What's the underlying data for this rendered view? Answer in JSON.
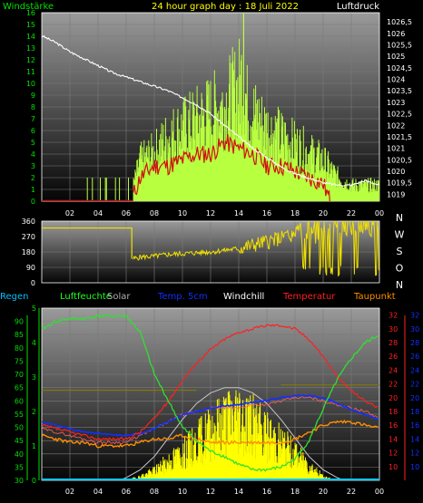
{
  "colors": {
    "background": "#000000",
    "plot_top": "#9a9a9a",
    "plot_bottom": "#050505",
    "grid": "#7a7a7a",
    "wind": "#7cf000",
    "wind_gust": "#b8ff40",
    "pressure": "#ffffff",
    "wind_dir": "#f0e000",
    "wind_dir_fill": "#8c8000",
    "rain": "#00d000",
    "humidity": "#30e030",
    "solar": "#ffff00",
    "solar_outline": "#c8c8c8",
    "soil_temp": "#1030ff",
    "windchill": "#ffffff",
    "temperature": "#ff2020",
    "dewpoint": "#ff8c00",
    "axis_green": "#00e000",
    "axis_red": "#ff2020",
    "axis_blue": "#1030ff",
    "header_white": "#ffffff",
    "header_yellow": "#ffff00"
  },
  "header": {
    "left": "Windstärke",
    "center": "24 hour graph day : 18 Juli 2022",
    "right": "Luftdruck"
  },
  "legend": [
    {
      "key": "rain",
      "label": "Regen",
      "color": "#00c0ff"
    },
    {
      "key": "humidity",
      "label": "Luftfeuchte",
      "color": "#20ff20"
    },
    {
      "key": "solar",
      "label": "Solar",
      "color": "#b0b0b0"
    },
    {
      "key": "soil_temp",
      "label": "Temp. 5cm",
      "color": "#1030ff"
    },
    {
      "key": "windchill",
      "label": "Windchill",
      "color": "#ffffff"
    },
    {
      "key": "temperature",
      "label": "Temperatur",
      "color": "#ff2020"
    },
    {
      "key": "dewpoint",
      "label": "Taupunkt",
      "color": "#ff8c00"
    }
  ],
  "chart_data": [
    {
      "type": "line",
      "id": "wind-pressure",
      "xlabel": "",
      "x_ticks": [
        "02",
        "04",
        "06",
        "08",
        "10",
        "12",
        "14",
        "16",
        "18",
        "20",
        "22",
        "00"
      ],
      "xlim": [
        0,
        24
      ],
      "y_left": {
        "label": "Windstärke",
        "min": 0,
        "max": 16,
        "ticks": [
          "0",
          "1",
          "2",
          "3",
          "4",
          "5",
          "6",
          "7",
          "8",
          "9",
          "10",
          "11",
          "12",
          "13",
          "14",
          "15",
          "16"
        ]
      },
      "y_right": {
        "label": "Luftdruck",
        "min": 1018.7,
        "max": 1026.9,
        "ticks": [
          "1019",
          "1019,5",
          "1020",
          "1020,5",
          "1021",
          "1021,5",
          "1022",
          "1022,5",
          "1023",
          "1023,5",
          "1024",
          "1024,5",
          "1025",
          "1025,5",
          "1026",
          "1026,5"
        ]
      },
      "series": [
        {
          "name": "Luftdruck",
          "axis": "right",
          "x": [
            0,
            1,
            2,
            3,
            4,
            5,
            6,
            7,
            8,
            9,
            10,
            11,
            12,
            13,
            14,
            15,
            16,
            17,
            18,
            19,
            20,
            21,
            22,
            23,
            24
          ],
          "y": [
            1025.9,
            1025.6,
            1025.2,
            1024.9,
            1024.6,
            1024.3,
            1024.1,
            1023.9,
            1023.7,
            1023.5,
            1023.2,
            1022.9,
            1022.5,
            1022.0,
            1021.5,
            1021.0,
            1020.6,
            1020.2,
            1019.9,
            1019.7,
            1019.5,
            1019.4,
            1019.4,
            1019.6,
            1019.4
          ]
        },
        {
          "name": "Windstärke",
          "axis": "left",
          "x": [
            6.5,
            7,
            8,
            9,
            10,
            11,
            12,
            13,
            14,
            15,
            16,
            17,
            18,
            19,
            20,
            20.5
          ],
          "y": [
            0.5,
            2,
            3,
            3,
            3.5,
            4,
            4,
            5,
            4.5,
            4,
            3,
            3,
            2.5,
            2,
            1.5,
            0
          ]
        },
        {
          "name": "Windböen",
          "axis": "left",
          "x": [
            0,
            0.5,
            3,
            6.5,
            7,
            8,
            9,
            10,
            11,
            12,
            13,
            14,
            14.3,
            14.6,
            15,
            16,
            17,
            18,
            19,
            20,
            21,
            22,
            23,
            24
          ],
          "y": [
            2,
            2,
            2,
            2,
            5,
            6,
            8,
            9,
            10,
            11,
            12,
            14,
            16,
            12,
            11,
            9,
            8,
            7,
            6,
            5,
            3,
            2,
            2,
            2
          ]
        }
      ]
    },
    {
      "type": "line",
      "id": "wind-direction",
      "xlim": [
        0,
        24
      ],
      "y_left": {
        "min": 0,
        "max": 360,
        "ticks": [
          "0",
          "90",
          "180",
          "270",
          "360"
        ]
      },
      "y_right_labels": [
        "N",
        "W",
        "S",
        "O",
        "N"
      ],
      "series": [
        {
          "name": "Windrichtung",
          "x": [
            0,
            6.4,
            6.5,
            7,
            8,
            9,
            10,
            11,
            12,
            13,
            14,
            15,
            16,
            17,
            18,
            19,
            20,
            21,
            22,
            23,
            24
          ],
          "y": [
            320,
            320,
            140,
            150,
            155,
            165,
            170,
            175,
            180,
            190,
            200,
            220,
            240,
            260,
            280,
            300,
            320,
            340,
            350,
            350,
            350
          ]
        }
      ]
    },
    {
      "type": "line",
      "id": "temperature-humidity",
      "xlim": [
        0,
        24
      ],
      "y_left_outer": {
        "label": "Regen",
        "min": 0,
        "max": 5,
        "ticks": [
          "0",
          "1",
          "2",
          "3",
          "4",
          "5"
        ]
      },
      "y_left": {
        "label": "Luftfeuchte",
        "min": 30,
        "max": 95,
        "ticks": [
          "30",
          "35",
          "40",
          "45",
          "50",
          "55",
          "60",
          "65",
          "70",
          "75",
          "80",
          "85",
          "90"
        ]
      },
      "y_right": {
        "label": "Temperatur",
        "min": 8,
        "max": 33,
        "ticks": [
          "10",
          "12",
          "14",
          "16",
          "18",
          "20",
          "22",
          "24",
          "26",
          "28",
          "30",
          "32"
        ]
      },
      "series": [
        {
          "name": "Luftfeuchte",
          "axis": "left",
          "x": [
            0,
            1,
            2,
            3,
            4,
            5,
            6,
            7,
            8,
            9,
            10,
            11,
            12,
            13,
            14,
            15,
            16,
            17,
            18,
            19,
            20,
            21,
            22,
            23,
            24
          ],
          "y": [
            87,
            90,
            91,
            91,
            92,
            92,
            92,
            86,
            70,
            60,
            50,
            45,
            41,
            39,
            36,
            34,
            34,
            35,
            38,
            45,
            57,
            68,
            76,
            82,
            85
          ]
        },
        {
          "name": "Temperatur",
          "axis": "right",
          "x": [
            0,
            1,
            2,
            3,
            4,
            5,
            6,
            7,
            8,
            9,
            10,
            11,
            12,
            13,
            14,
            15,
            16,
            17,
            18,
            19,
            20,
            21,
            22,
            23,
            24
          ],
          "y": [
            16,
            15.5,
            15,
            14.5,
            14,
            14,
            14,
            15,
            17,
            19.5,
            22.5,
            25,
            27,
            28.5,
            29.5,
            30,
            30.5,
            30.5,
            30,
            28.5,
            26,
            23,
            21,
            19.5,
            18.5
          ]
        },
        {
          "name": "Taupunkt",
          "axis": "right",
          "x": [
            0,
            1,
            2,
            3,
            4,
            5,
            6,
            7,
            8,
            9,
            10,
            11,
            12,
            13,
            14,
            15,
            16,
            17,
            18,
            19,
            20,
            21,
            22,
            23,
            24
          ],
          "y": [
            14.5,
            14,
            13.5,
            13.5,
            13,
            13,
            13,
            13.5,
            14,
            14,
            14.5,
            14,
            13.5,
            13.5,
            13.5,
            13.5,
            13.5,
            13.5,
            14,
            15,
            16,
            16.5,
            16.5,
            16,
            15.5
          ]
        },
        {
          "name": "Windchill",
          "axis": "right",
          "x": [
            0,
            1,
            2,
            3,
            4,
            5,
            6,
            7,
            8,
            9,
            10,
            11,
            12,
            13,
            14,
            15,
            16,
            17,
            18,
            19,
            20,
            21,
            22,
            23,
            24
          ],
          "y": [
            15.5,
            15,
            14.5,
            14,
            13.5,
            13.5,
            13.5,
            14.5,
            15.5,
            16.5,
            17.5,
            18,
            18.5,
            18.5,
            18.5,
            19,
            19,
            19.5,
            20,
            20,
            19.5,
            19,
            18.5,
            18,
            17
          ]
        },
        {
          "name": "Temp. 5cm",
          "axis": "right",
          "x": [
            0,
            1,
            2,
            3,
            4,
            5,
            6,
            7,
            8,
            9,
            10,
            11,
            12,
            13,
            14,
            15,
            16,
            17,
            18,
            19,
            20,
            21,
            22,
            23,
            24
          ],
          "y": [
            16.5,
            16,
            15.5,
            15,
            14.8,
            14.6,
            14.5,
            14.8,
            15.5,
            16.5,
            17.5,
            18,
            18.5,
            18.8,
            19,
            19.3,
            19.6,
            20,
            20.3,
            20.3,
            20,
            19.2,
            18.3,
            17.5,
            16.8
          ]
        },
        {
          "name": "Solar",
          "axis": "left",
          "x": [
            6,
            7,
            8,
            9,
            10,
            11,
            12,
            13,
            14,
            15,
            16,
            17,
            18,
            19,
            20,
            21
          ],
          "y": [
            30,
            32,
            35,
            40,
            44,
            50,
            57,
            62,
            66,
            60,
            54,
            50,
            44,
            38,
            32,
            30
          ]
        },
        {
          "name": "Solar max",
          "axis": "left",
          "x": [
            5.5,
            6,
            7,
            8,
            9,
            10,
            11,
            12,
            13,
            14,
            15,
            16,
            17,
            18,
            19,
            20,
            21,
            21.5,
            22
          ],
          "y": [
            30,
            31,
            34,
            39,
            46,
            53,
            59,
            63,
            65,
            65,
            63,
            59,
            53,
            46,
            39,
            34,
            31,
            30,
            30
          ]
        }
      ]
    }
  ]
}
